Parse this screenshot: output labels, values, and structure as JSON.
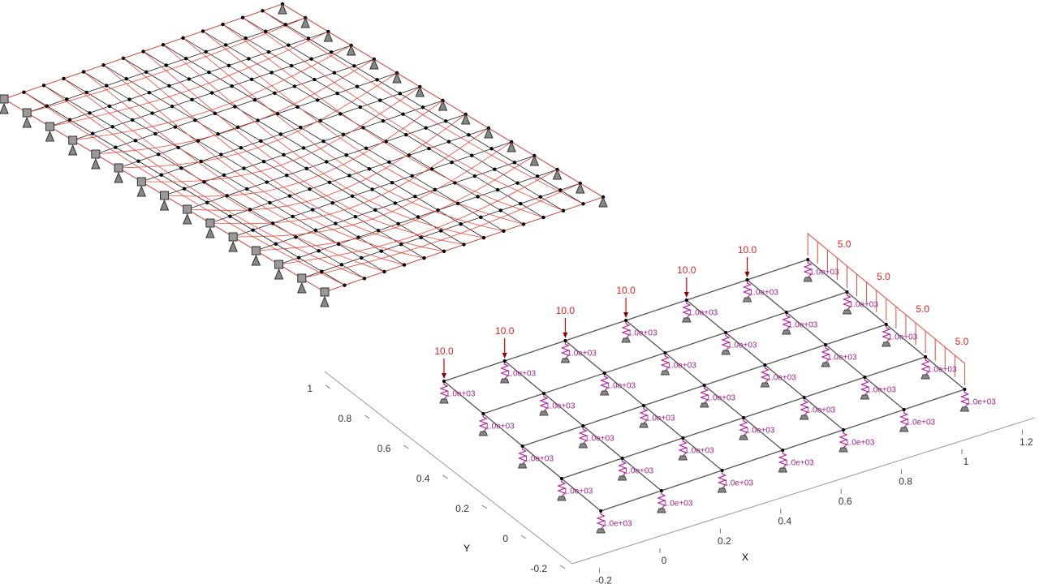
{
  "right_plot": {
    "point_load_labels": [
      "10.0",
      "10.0",
      "10.0",
      "10.0",
      "10.0",
      "10.0"
    ],
    "edge_load_labels": [
      "5.0",
      "5.0",
      "5.0",
      "5.0"
    ],
    "spring_labels": [
      "1.0e+03",
      "1.0e+03",
      "1.0e+03",
      "1.0e+03",
      "1.0e+03",
      "1.0e+03",
      "1.0e+03",
      "1.0e+03",
      "1.0e+03",
      "1.0e+03",
      "1.0e+03",
      "1.0e+03",
      "1.0e+03",
      "1.0e+03",
      "1.0e+03",
      "1.0e+03",
      "1.0e+03",
      "1.0e+03",
      "1.0e+03",
      "1.0e+03",
      "1.0e+03",
      "1.0e+03",
      "1.0e+03",
      "1.0e+03",
      "1.0e+03",
      "1.0e+03",
      "1.0e+03",
      "1.0e+03",
      "1.0e+03",
      "1.0e+03",
      "1.0e+03",
      "1.0e+03",
      "1.0e+03",
      "1.0e+03",
      "1.0e+03"
    ],
    "axes": {
      "x_label": "X",
      "y_label": "Y",
      "x_ticks": [
        -0.2,
        0,
        0.2,
        0.4,
        0.6,
        0.8,
        1,
        1.2
      ],
      "y_ticks": [
        -0.2,
        0,
        0.2,
        0.4,
        0.6,
        0.8,
        1
      ]
    }
  }
}
